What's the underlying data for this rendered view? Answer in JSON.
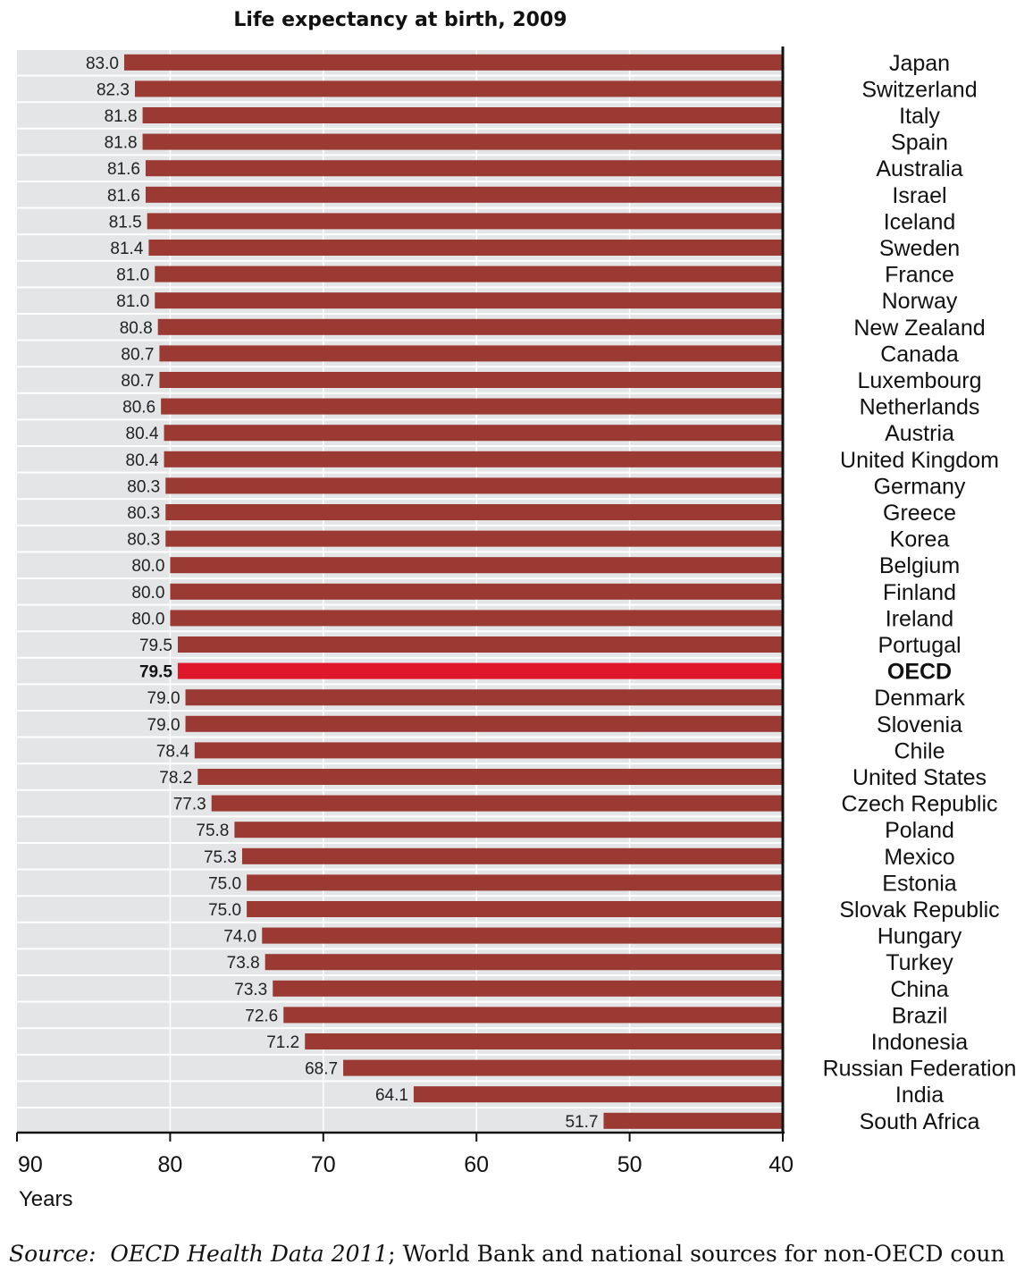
{
  "chart_data": {
    "type": "bar",
    "orientation": "horizontal",
    "title": "Life expectancy at birth, 2009",
    "xlabel": "Years",
    "xlim": [
      90,
      40
    ],
    "axis_reversed": true,
    "ticks": [
      "90",
      "80",
      "70",
      "60",
      "50",
      "40"
    ],
    "tick_values": [
      90,
      80,
      70,
      60,
      50,
      40
    ],
    "highlight": "OECD",
    "colors": {
      "bar": "#9b3a33",
      "highlight": "#e0172b",
      "band": "#e4e5e7",
      "axis": "#111111"
    },
    "categories": [
      "Japan",
      "Switzerland",
      "Italy",
      "Spain",
      "Australia",
      "Israel",
      "Iceland",
      "Sweden",
      "France",
      "Norway",
      "New Zealand",
      "Canada",
      "Luxembourg",
      "Netherlands",
      "Austria",
      "United Kingdom",
      "Germany",
      "Greece",
      "Korea",
      "Belgium",
      "Finland",
      "Ireland",
      "Portugal",
      "OECD",
      "Denmark",
      "Slovenia",
      "Chile",
      "United States",
      "Czech Republic",
      "Poland",
      "Mexico",
      "Estonia",
      "Slovak Republic",
      "Hungary",
      "Turkey",
      "China",
      "Brazil",
      "Indonesia",
      "Russian Federation",
      "India",
      "South Africa"
    ],
    "values": [
      83.0,
      82.3,
      81.8,
      81.8,
      81.6,
      81.6,
      81.5,
      81.4,
      81.0,
      81.0,
      80.8,
      80.7,
      80.7,
      80.6,
      80.4,
      80.4,
      80.3,
      80.3,
      80.3,
      80.0,
      80.0,
      80.0,
      79.5,
      79.5,
      79.0,
      79.0,
      78.4,
      78.2,
      77.3,
      75.8,
      75.3,
      75.0,
      75.0,
      74.0,
      73.8,
      73.3,
      72.6,
      71.2,
      68.7,
      64.1,
      51.7
    ],
    "labels": [
      "83.0",
      "82.3",
      "81.8",
      "81.8",
      "81.6",
      "81.6",
      "81.5",
      "81.4",
      "81.0",
      "81.0",
      "80.8",
      "80.7",
      "80.7",
      "80.6",
      "80.4",
      "80.4",
      "80.3",
      "80.3",
      "80.3",
      "80.0",
      "80.0",
      "80.0",
      "79.5",
      "79.5",
      "79.0",
      "79.0",
      "78.4",
      "78.2",
      "77.3",
      "75.8",
      "75.3",
      "75.0",
      "75.0",
      "74.0",
      "73.8",
      "73.3",
      "72.6",
      "71.2",
      "68.7",
      "64.1",
      "51.7"
    ]
  },
  "source": {
    "label": "Source:",
    "italic": "OECD Health Data 2011",
    "rest": "; World Bank and national sources for non-OECD coun"
  }
}
